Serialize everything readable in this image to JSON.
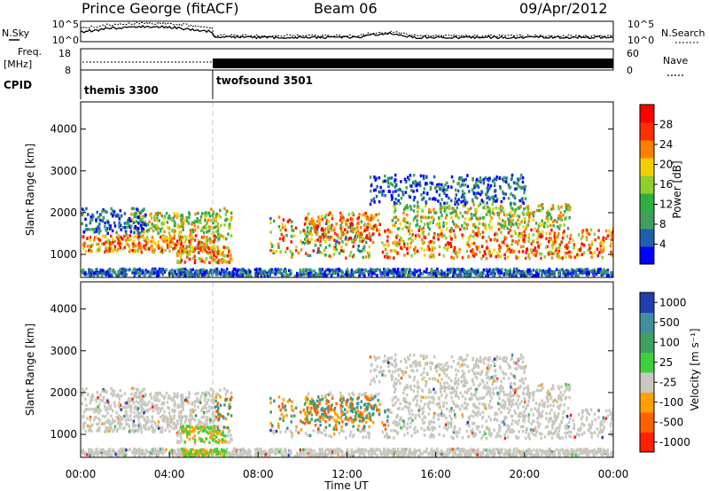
{
  "header": {
    "station": "Prince George (fitACF)",
    "beam": "Beam 06",
    "date": "09/Apr/2012"
  },
  "top_panels": {
    "nsky_label": "N.Sky",
    "nsearch_label": "N.Search",
    "freq_label_line1": "Freq.",
    "freq_label_line2": "[MHz]",
    "nave_label": "Nave",
    "cpid_label": "CPID",
    "noise_ticks": [
      "10^5",
      "10^0"
    ],
    "noise_right_ticks": [
      "10^5",
      "10^0"
    ],
    "freq_ticks": [
      "18",
      "8"
    ],
    "nave_ticks": [
      "60",
      "0"
    ],
    "cpid_segments": [
      {
        "name": "themis 3300",
        "start_hour": 0
      },
      {
        "name": "twofsound 3501",
        "start_hour": 6
      }
    ]
  },
  "chart_data": [
    {
      "type": "heatmap",
      "title": "",
      "ylabel": "Slant Range [km]",
      "yticks": [
        "1000",
        "2000",
        "3000",
        "4000"
      ],
      "ylim": [
        450,
        4650
      ],
      "xlim_hours": [
        0,
        24
      ],
      "colorbar": {
        "label": "Power [dB]",
        "ticks": [
          "4",
          "8",
          "12",
          "16",
          "20",
          "24",
          "28"
        ],
        "range": [
          0,
          32
        ],
        "colors": [
          "#0000ff",
          "#1f5fb0",
          "#3f9f5f",
          "#2faf3f",
          "#8fcf2f",
          "#f0d000",
          "#ff8000",
          "#ff3000",
          "#ff0000"
        ]
      }
    },
    {
      "type": "heatmap",
      "title": "",
      "ylabel": "Slant Range [km]",
      "yticks": [
        "1000",
        "2000",
        "3000",
        "4000"
      ],
      "ylim": [
        450,
        4650
      ],
      "xlim_hours": [
        0,
        24
      ],
      "colorbar": {
        "label": "Velocity [m s⁻¹]",
        "ticks": [
          "1000",
          "500",
          "100",
          "25",
          "-25",
          "-100",
          "-500",
          "-1000"
        ],
        "colors": [
          "#1f3fb0",
          "#3f8f9f",
          "#3fa060",
          "#3fcf3f",
          "#c8c8c0",
          "#ffa000",
          "#ff6000",
          "#ff2000"
        ]
      }
    }
  ],
  "x_axis": {
    "label": "Time UT",
    "ticks": [
      "00:00",
      "04:00",
      "08:00",
      "12:00",
      "16:00",
      "20:00",
      "00:00"
    ]
  }
}
